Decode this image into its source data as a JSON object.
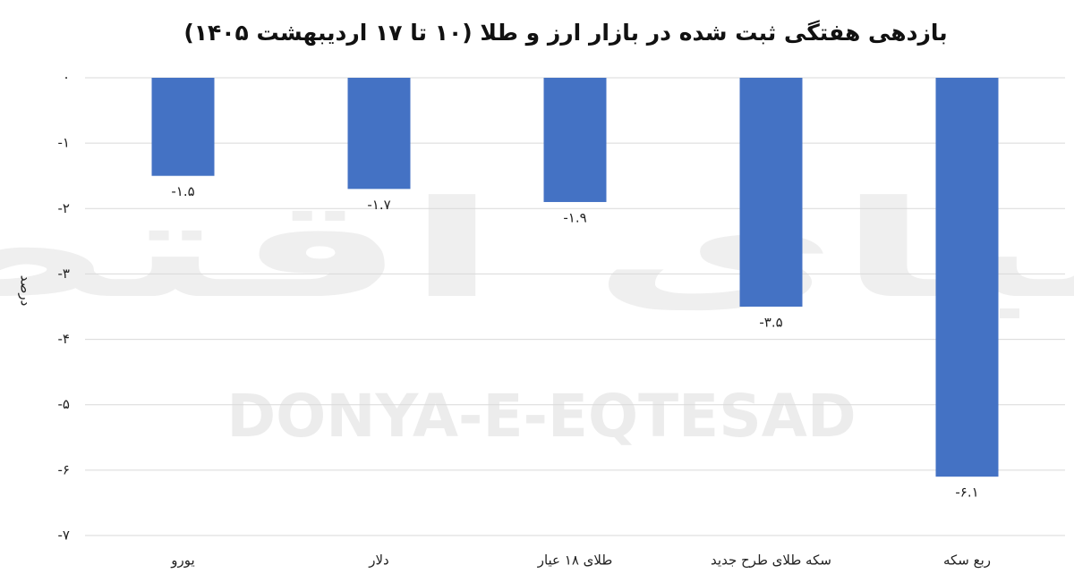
{
  "chart_data": {
    "type": "bar",
    "title": "بازدهی هفتگی ثبت شده در بازار ارز و طلا (۱۰ تا ۱۷ اردیبهشت ۱۴۰۵)",
    "y_label": "درصد",
    "watermark": [
      "دنیای اقتصاد",
      "DONYA-E-EQTESAD"
    ],
    "categories": [
      "یورو",
      "دلار",
      "طلای ۱۸ عیار",
      "سکه طلای طرح جدید",
      "ربع سکه"
    ],
    "values": [
      -1.5,
      -1.7,
      -1.9,
      -3.5,
      -6.1
    ],
    "value_labels": [
      "-۱.۵",
      "-۱.۷",
      "-۱.۹",
      "-۳.۵",
      "-۶.۱"
    ],
    "color": "#4472c4",
    "ylim": [
      -7,
      0
    ],
    "yticks": [
      {
        "value": 0,
        "label": "۰"
      },
      {
        "value": -1,
        "label": "-۱"
      },
      {
        "value": -2,
        "label": "-۲"
      },
      {
        "value": -3,
        "label": "-۳"
      },
      {
        "value": -4,
        "label": "-۴"
      },
      {
        "value": -5,
        "label": "-۵"
      },
      {
        "value": -6,
        "label": "-۶"
      },
      {
        "value": -7,
        "label": "-۷"
      }
    ],
    "grid": true
  }
}
